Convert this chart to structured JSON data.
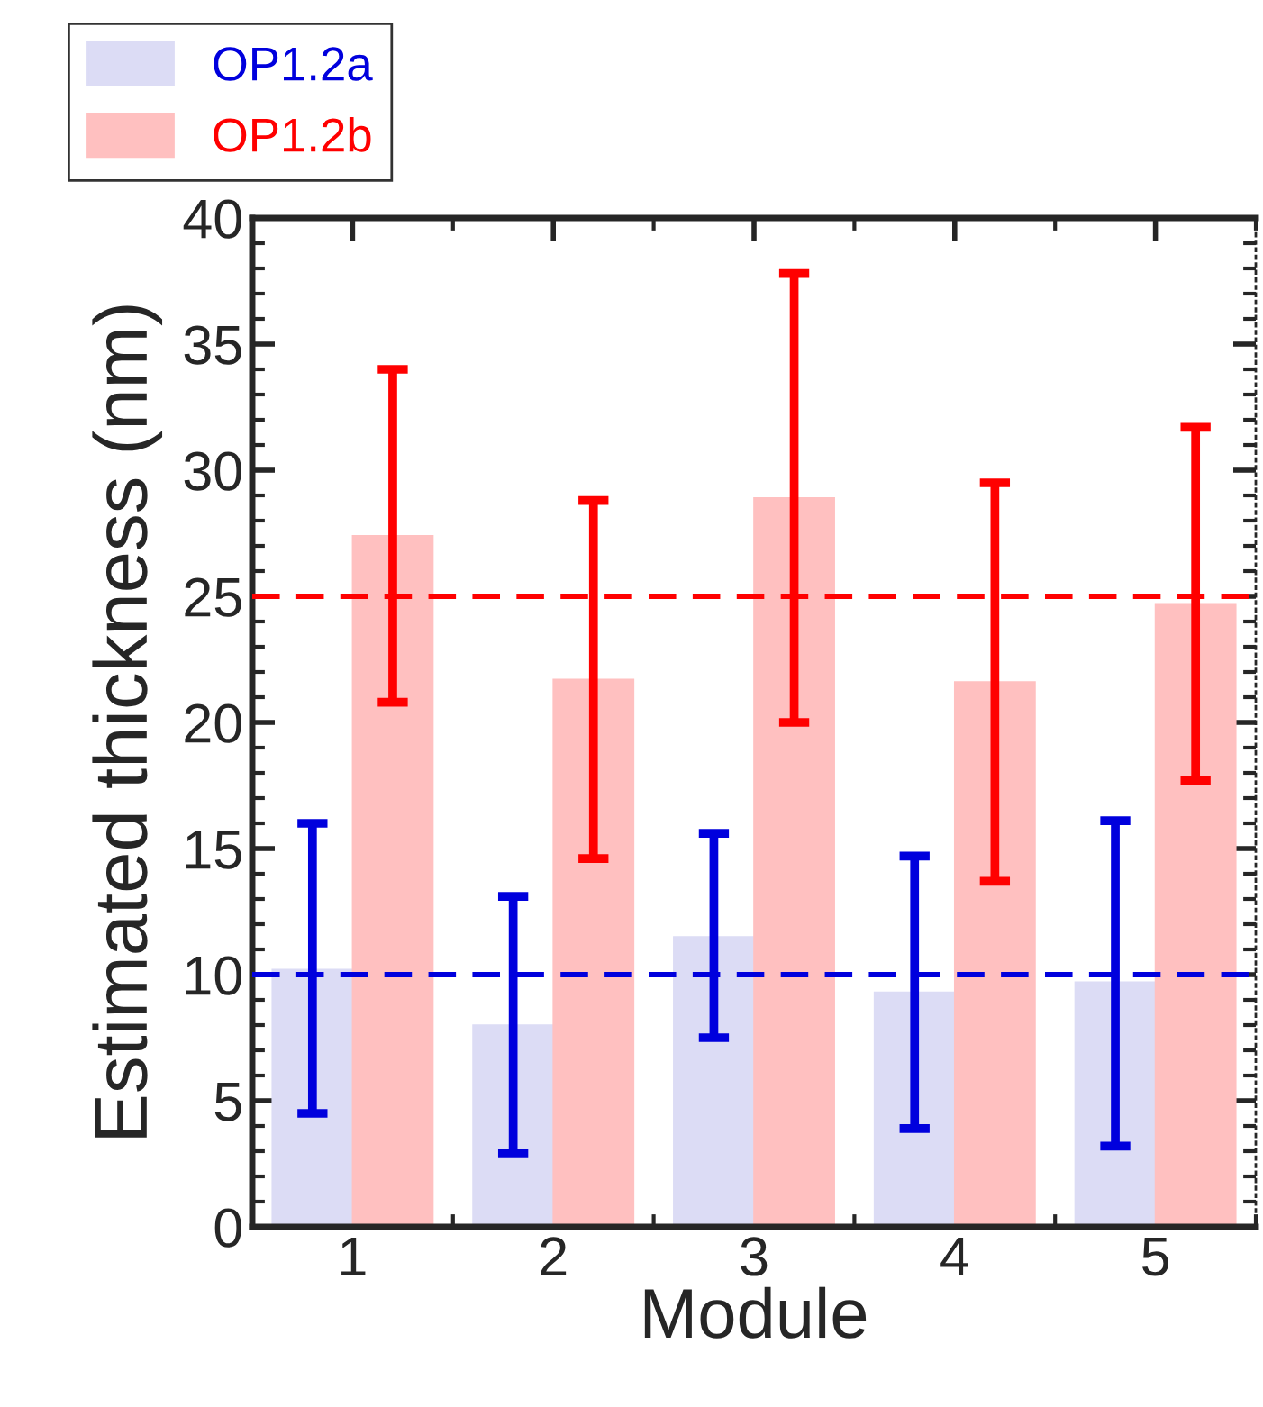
{
  "chart_data": {
    "type": "bar",
    "xlabel": "Module",
    "ylabel": "Estimated thickness (nm)",
    "categories": [
      "1",
      "2",
      "3",
      "4",
      "5"
    ],
    "series": [
      {
        "name": "OP1.2a",
        "color": "#dcdcf5",
        "values": [
          10.2,
          8.0,
          11.5,
          9.3,
          9.7
        ],
        "errors": [
          [
            4.5,
            16.0
          ],
          [
            2.9,
            13.1
          ],
          [
            7.5,
            15.6
          ],
          [
            3.9,
            14.7
          ],
          [
            3.2,
            16.1
          ]
        ]
      },
      {
        "name": "OP1.2b",
        "color": "#ffc0c0",
        "values": [
          27.4,
          21.7,
          28.9,
          21.6,
          24.7
        ],
        "errors": [
          [
            20.8,
            34.0
          ],
          [
            14.6,
            28.8
          ],
          [
            20.0,
            37.8
          ],
          [
            13.7,
            29.5
          ],
          [
            17.7,
            31.7
          ]
        ]
      }
    ],
    "ylim": [
      0,
      40
    ],
    "yticks": [
      0,
      5,
      10,
      15,
      20,
      25,
      30,
      35,
      40
    ],
    "ref_lines": [
      {
        "axis": "y",
        "value": 10,
        "label": null,
        "color": "#0000dd",
        "line_style": "dashed"
      },
      {
        "axis": "y",
        "value": 25,
        "label": null,
        "color": "#ff0000",
        "line_style": "dashed"
      }
    ],
    "grid": false,
    "legend": "top left"
  }
}
